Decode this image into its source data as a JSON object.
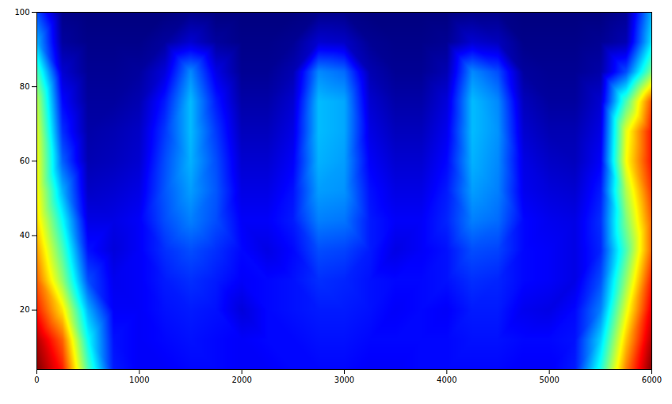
{
  "chart_data": {
    "type": "heatmap",
    "x": [
      0,
      250,
      500,
      750,
      1000,
      1250,
      1500,
      1750,
      2000,
      2250,
      2500,
      2750,
      3000,
      3250,
      3500,
      3750,
      4000,
      4250,
      4500,
      4750,
      5000,
      5250,
      5500,
      5750,
      6000
    ],
    "y": [
      4,
      12,
      20,
      28,
      36,
      44,
      52,
      60,
      68,
      76,
      84,
      92,
      100
    ],
    "cells": [
      [
        1.0,
        0.85,
        0.45,
        0.15,
        0.12,
        0.12,
        0.13,
        0.13,
        0.12,
        0.12,
        0.13,
        0.13,
        0.13,
        0.12,
        0.12,
        0.13,
        0.13,
        0.13,
        0.13,
        0.12,
        0.12,
        0.15,
        0.4,
        0.75,
        1.0
      ],
      [
        0.95,
        0.78,
        0.38,
        0.14,
        0.12,
        0.13,
        0.14,
        0.13,
        0.12,
        0.13,
        0.13,
        0.14,
        0.14,
        0.13,
        0.13,
        0.13,
        0.13,
        0.14,
        0.14,
        0.13,
        0.13,
        0.14,
        0.33,
        0.68,
        0.95
      ],
      [
        0.85,
        0.65,
        0.3,
        0.12,
        0.12,
        0.14,
        0.15,
        0.14,
        0.09,
        0.13,
        0.14,
        0.15,
        0.15,
        0.14,
        0.12,
        0.13,
        0.12,
        0.15,
        0.15,
        0.11,
        0.1,
        0.13,
        0.25,
        0.6,
        0.9
      ],
      [
        0.78,
        0.52,
        0.2,
        0.11,
        0.12,
        0.15,
        0.17,
        0.15,
        0.12,
        0.13,
        0.14,
        0.17,
        0.16,
        0.14,
        0.13,
        0.13,
        0.14,
        0.17,
        0.16,
        0.13,
        0.12,
        0.1,
        0.2,
        0.52,
        0.85
      ],
      [
        0.72,
        0.45,
        0.14,
        0.09,
        0.12,
        0.17,
        0.2,
        0.17,
        0.13,
        0.1,
        0.13,
        0.2,
        0.19,
        0.15,
        0.1,
        0.12,
        0.14,
        0.2,
        0.19,
        0.13,
        0.12,
        0.1,
        0.16,
        0.45,
        0.78
      ],
      [
        0.66,
        0.38,
        0.1,
        0.1,
        0.12,
        0.2,
        0.25,
        0.2,
        0.12,
        0.12,
        0.15,
        0.25,
        0.24,
        0.15,
        0.12,
        0.12,
        0.16,
        0.25,
        0.23,
        0.13,
        0.11,
        0.1,
        0.17,
        0.5,
        0.78
      ],
      [
        0.63,
        0.3,
        0.07,
        0.08,
        0.1,
        0.21,
        0.28,
        0.21,
        0.1,
        0.1,
        0.14,
        0.28,
        0.27,
        0.14,
        0.1,
        0.1,
        0.15,
        0.28,
        0.25,
        0.11,
        0.09,
        0.08,
        0.15,
        0.55,
        0.82
      ],
      [
        0.62,
        0.22,
        0.05,
        0.06,
        0.08,
        0.2,
        0.3,
        0.2,
        0.08,
        0.08,
        0.12,
        0.3,
        0.28,
        0.12,
        0.08,
        0.08,
        0.13,
        0.3,
        0.26,
        0.1,
        0.07,
        0.06,
        0.12,
        0.62,
        0.86
      ],
      [
        0.6,
        0.17,
        0.04,
        0.05,
        0.07,
        0.18,
        0.31,
        0.18,
        0.06,
        0.06,
        0.1,
        0.31,
        0.29,
        0.1,
        0.06,
        0.06,
        0.11,
        0.31,
        0.27,
        0.08,
        0.05,
        0.05,
        0.1,
        0.6,
        0.86
      ],
      [
        0.56,
        0.13,
        0.03,
        0.03,
        0.05,
        0.15,
        0.31,
        0.15,
        0.04,
        0.04,
        0.08,
        0.31,
        0.29,
        0.08,
        0.04,
        0.04,
        0.09,
        0.31,
        0.26,
        0.06,
        0.03,
        0.03,
        0.08,
        0.45,
        0.8
      ],
      [
        0.45,
        0.08,
        0.02,
        0.02,
        0.03,
        0.09,
        0.26,
        0.1,
        0.02,
        0.02,
        0.05,
        0.26,
        0.23,
        0.05,
        0.02,
        0.02,
        0.05,
        0.26,
        0.2,
        0.03,
        0.02,
        0.02,
        0.04,
        0.2,
        0.5
      ],
      [
        0.3,
        0.03,
        0.01,
        0.01,
        0.01,
        0.03,
        0.08,
        0.03,
        0.01,
        0.01,
        0.02,
        0.08,
        0.07,
        0.02,
        0.01,
        0.01,
        0.02,
        0.08,
        0.06,
        0.01,
        0.01,
        0.01,
        0.02,
        0.05,
        0.35
      ],
      [
        0.2,
        0.01,
        0,
        0,
        0,
        0,
        0.01,
        0,
        0,
        0,
        0,
        0.01,
        0.01,
        0,
        0,
        0,
        0,
        0.01,
        0.01,
        0,
        0,
        0,
        0,
        0.02,
        0.3
      ]
    ],
    "zlim": [
      0,
      1
    ],
    "xlim": [
      0,
      6000
    ],
    "xticks": [
      0,
      1000,
      2000,
      3000,
      4000,
      5000,
      6000
    ],
    "ylim": [
      4,
      100
    ],
    "yticks": [
      20,
      40,
      60,
      80,
      100
    ]
  }
}
